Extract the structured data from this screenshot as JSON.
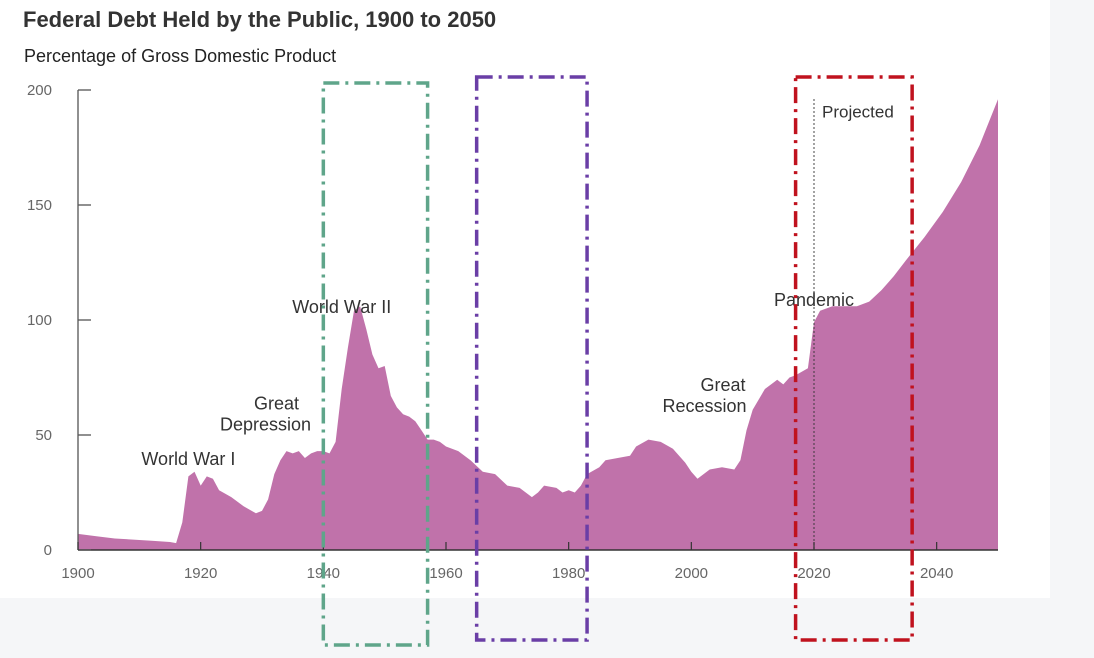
{
  "chart_data": {
    "type": "area",
    "title": "Federal Debt Held by the Public, 1900 to 2050",
    "subtitle": "Percentage of Gross Domestic Product",
    "xlabel": "",
    "ylabel": "",
    "xlim": [
      1900,
      2050
    ],
    "ylim": [
      0,
      200
    ],
    "x_ticks": [
      1900,
      1920,
      1940,
      1960,
      1980,
      2000,
      2020,
      2040
    ],
    "y_ticks": [
      0,
      50,
      100,
      150,
      200
    ],
    "grid": false,
    "projection_start_year": 2020,
    "projection_label": "Projected",
    "series": [
      {
        "name": "Federal debt held by the public",
        "color": "#c072aa",
        "points": [
          [
            1900,
            7
          ],
          [
            1903,
            6
          ],
          [
            1906,
            5
          ],
          [
            1909,
            4.5
          ],
          [
            1912,
            4
          ],
          [
            1915,
            3.5
          ],
          [
            1916,
            3
          ],
          [
            1917,
            12
          ],
          [
            1918,
            32
          ],
          [
            1919,
            34
          ],
          [
            1920,
            28
          ],
          [
            1921,
            32
          ],
          [
            1922,
            31
          ],
          [
            1923,
            26
          ],
          [
            1925,
            23
          ],
          [
            1927,
            19
          ],
          [
            1929,
            16
          ],
          [
            1930,
            17
          ],
          [
            1931,
            22
          ],
          [
            1932,
            33
          ],
          [
            1933,
            39
          ],
          [
            1934,
            43
          ],
          [
            1935,
            42
          ],
          [
            1936,
            43
          ],
          [
            1937,
            40
          ],
          [
            1938,
            42
          ],
          [
            1939,
            43
          ],
          [
            1940,
            43
          ],
          [
            1941,
            42
          ],
          [
            1942,
            47
          ],
          [
            1943,
            70
          ],
          [
            1944,
            88
          ],
          [
            1945,
            104
          ],
          [
            1946,
            106
          ],
          [
            1947,
            96
          ],
          [
            1948,
            85
          ],
          [
            1949,
            79
          ],
          [
            1950,
            80
          ],
          [
            1951,
            67
          ],
          [
            1952,
            62
          ],
          [
            1953,
            59
          ],
          [
            1954,
            58
          ],
          [
            1955,
            56
          ],
          [
            1956,
            52
          ],
          [
            1957,
            48
          ],
          [
            1958,
            48
          ],
          [
            1959,
            47
          ],
          [
            1960,
            45
          ],
          [
            1962,
            43
          ],
          [
            1964,
            39
          ],
          [
            1966,
            34
          ],
          [
            1968,
            33
          ],
          [
            1970,
            28
          ],
          [
            1972,
            27
          ],
          [
            1974,
            23
          ],
          [
            1975,
            25
          ],
          [
            1976,
            28
          ],
          [
            1978,
            27
          ],
          [
            1979,
            25
          ],
          [
            1980,
            26
          ],
          [
            1981,
            25
          ],
          [
            1982,
            28
          ],
          [
            1983,
            33
          ],
          [
            1985,
            36
          ],
          [
            1986,
            39
          ],
          [
            1988,
            40
          ],
          [
            1990,
            41
          ],
          [
            1991,
            45
          ],
          [
            1993,
            48
          ],
          [
            1995,
            47
          ],
          [
            1997,
            44
          ],
          [
            1999,
            38
          ],
          [
            2000,
            34
          ],
          [
            2001,
            31
          ],
          [
            2003,
            35
          ],
          [
            2005,
            36
          ],
          [
            2007,
            35
          ],
          [
            2008,
            39
          ],
          [
            2009,
            52
          ],
          [
            2010,
            61
          ],
          [
            2012,
            70
          ],
          [
            2014,
            74
          ],
          [
            2015,
            72
          ],
          [
            2016,
            75
          ],
          [
            2017,
            76
          ],
          [
            2019,
            79
          ],
          [
            2020,
            99
          ],
          [
            2021,
            104
          ],
          [
            2023,
            106
          ],
          [
            2025,
            106
          ],
          [
            2027,
            106
          ],
          [
            2029,
            108
          ],
          [
            2031,
            113
          ],
          [
            2033,
            119
          ],
          [
            2035,
            126
          ],
          [
            2038,
            136
          ],
          [
            2041,
            147
          ],
          [
            2044,
            160
          ],
          [
            2047,
            176
          ],
          [
            2050,
            196
          ]
        ]
      }
    ],
    "annotations": [
      {
        "lines": [
          "World War I"
        ],
        "year": 1919,
        "value": 37
      },
      {
        "lines": [
          "Great",
          "Depression"
        ],
        "year": 1932,
        "value": 52
      },
      {
        "lines": [
          "World War II"
        ],
        "year": 1943,
        "value": 103
      },
      {
        "lines": [
          "Great",
          "Recession"
        ],
        "year": 2004,
        "value": 60
      },
      {
        "lines": [
          "Pandemic"
        ],
        "year": 2020,
        "value": 106
      }
    ],
    "highlight_boxes": [
      {
        "color": "#5fa58a",
        "x_start": 1940,
        "x_end": 1957
      },
      {
        "color": "#6a3ea6",
        "x_start": 1965,
        "x_end": 1983
      },
      {
        "color": "#c0121e",
        "x_start": 2017,
        "x_end": 2036
      }
    ]
  }
}
